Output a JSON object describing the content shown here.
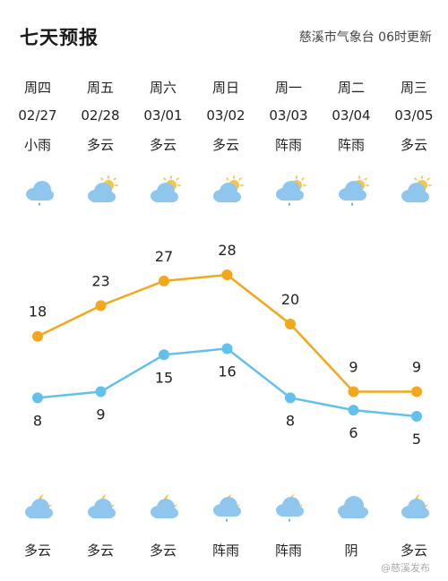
{
  "header": {
    "title": "七天预报",
    "source": "慈溪市气象台  06时更新"
  },
  "colors": {
    "high_line": "#F2A71D",
    "low_line": "#62C0EC",
    "cloud": "#8EC6EE",
    "sun": "#F7C54A",
    "moon": "#F7C54A",
    "rain": "#5AA9E6"
  },
  "days": [
    {
      "weekday": "周四",
      "date": "02/27",
      "day_cond": "小雨",
      "day_icon": "rain-icon",
      "night_cond": "多云",
      "night_icon": "cloudy-night-icon",
      "high": 18,
      "low": 8
    },
    {
      "weekday": "周五",
      "date": "02/28",
      "day_cond": "多云",
      "day_icon": "partly-cloudy-day-icon",
      "night_cond": "多云",
      "night_icon": "cloudy-night-icon",
      "high": 23,
      "low": 9
    },
    {
      "weekday": "周六",
      "date": "03/01",
      "day_cond": "多云",
      "day_icon": "partly-cloudy-day-icon",
      "night_cond": "多云",
      "night_icon": "cloudy-night-icon",
      "high": 27,
      "low": 15
    },
    {
      "weekday": "周日",
      "date": "03/02",
      "day_cond": "多云",
      "day_icon": "partly-cloudy-day-icon",
      "night_cond": "阵雨",
      "night_icon": "shower-night-icon",
      "high": 28,
      "low": 16
    },
    {
      "weekday": "周一",
      "date": "03/03",
      "day_cond": "阵雨",
      "day_icon": "shower-day-icon",
      "night_cond": "阵雨",
      "night_icon": "shower-night-icon",
      "high": 20,
      "low": 8
    },
    {
      "weekday": "周二",
      "date": "03/04",
      "day_cond": "阵雨",
      "day_icon": "shower-day-icon",
      "night_cond": "阴",
      "night_icon": "overcast-icon",
      "high": 9,
      "low": 6
    },
    {
      "weekday": "周三",
      "date": "03/05",
      "day_cond": "多云",
      "day_icon": "partly-cloudy-day-icon",
      "night_cond": "多云",
      "night_icon": "cloudy-night-icon",
      "high": 9,
      "low": 5
    }
  ],
  "chart_data": {
    "type": "line",
    "categories": [
      "周四",
      "周五",
      "周六",
      "周日",
      "周一",
      "周二",
      "周三"
    ],
    "series": [
      {
        "values": [
          18,
          23,
          27,
          28,
          20,
          9,
          9
        ]
      },
      {
        "values": [
          8,
          9,
          15,
          16,
          8,
          6,
          5
        ]
      }
    ],
    "ylim": [
      5,
      28
    ],
    "grid": false
  },
  "watermark": "@慈溪发布"
}
